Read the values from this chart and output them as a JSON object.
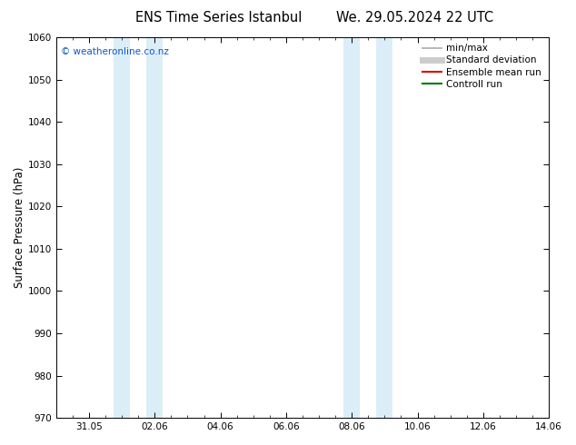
{
  "title1": "ENS Time Series Istanbul",
  "title2": "We. 29.05.2024 22 UTC",
  "ylabel": "Surface Pressure (hPa)",
  "ylim": [
    970,
    1060
  ],
  "yticks": [
    970,
    980,
    990,
    1000,
    1010,
    1020,
    1030,
    1040,
    1050,
    1060
  ],
  "xlim_start": 0.0,
  "xlim_end": 15.0,
  "xtick_labels": [
    "31.05",
    "02.06",
    "04.06",
    "06.06",
    "08.06",
    "10.06",
    "12.06",
    "14.06"
  ],
  "xtick_positions": [
    1.0,
    3.0,
    5.0,
    7.0,
    9.0,
    11.0,
    13.0,
    15.0
  ],
  "shaded_bands": [
    {
      "xmin": 1.75,
      "xmax": 2.25
    },
    {
      "xmin": 2.75,
      "xmax": 3.25
    },
    {
      "xmin": 8.75,
      "xmax": 9.25
    },
    {
      "xmin": 9.75,
      "xmax": 10.25
    }
  ],
  "band_color": "#dbeef8",
  "watermark": "© weatheronline.co.nz",
  "legend_items": [
    {
      "label": "min/max",
      "color": "#aaaaaa",
      "lw": 1.2,
      "style": "-"
    },
    {
      "label": "Standard deviation",
      "color": "#cccccc",
      "lw": 5,
      "style": "-"
    },
    {
      "label": "Ensemble mean run",
      "color": "#dd0000",
      "lw": 1.5,
      "style": "-"
    },
    {
      "label": "Controll run",
      "color": "#007700",
      "lw": 1.5,
      "style": "-"
    }
  ],
  "background_color": "#ffffff",
  "plot_bg_color": "#ffffff",
  "title_fontsize": 10.5,
  "tick_fontsize": 7.5,
  "label_fontsize": 8.5,
  "watermark_fontsize": 7.5,
  "legend_fontsize": 7.5
}
